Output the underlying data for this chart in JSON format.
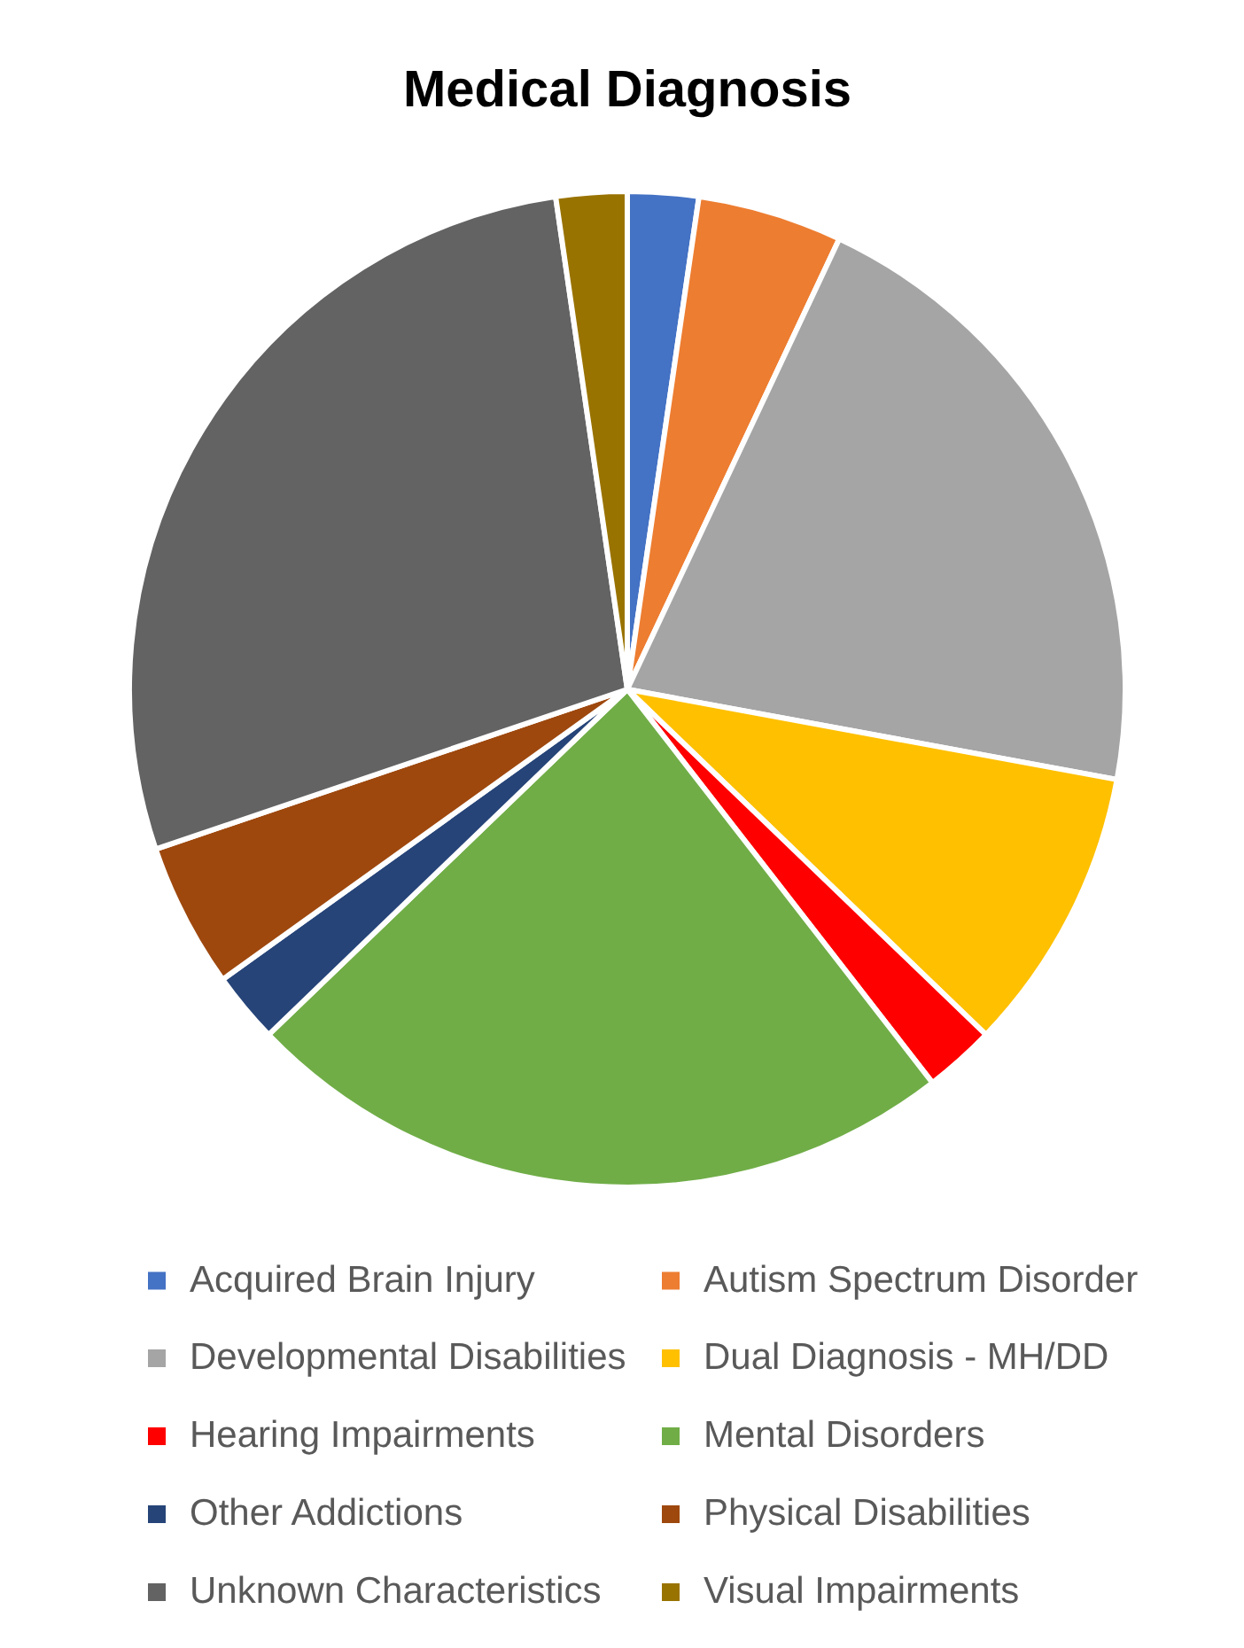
{
  "chart_data": {
    "type": "pie",
    "title": "Medical Diagnosis",
    "categories": [
      "Acquired Brain Injury",
      "Autism Spectrum Disorder",
      "Developmental Disabilities",
      "Dual Diagnosis - MH/DD",
      "Hearing Impairments",
      "Mental Disorders",
      "Other Addictions",
      "Physical Disabilities",
      "Unknown Characteristics",
      "Visual Impairments"
    ],
    "values": [
      2.3,
      4.7,
      20.9,
      9.3,
      2.3,
      23.3,
      2.3,
      4.7,
      27.9,
      2.3
    ],
    "colors": [
      "#4472c4",
      "#ed7d31",
      "#a5a5a5",
      "#ffc000",
      "#ff0000",
      "#70ad47",
      "#264478",
      "#9e480e",
      "#636363",
      "#997300"
    ],
    "legend": "bottom"
  }
}
